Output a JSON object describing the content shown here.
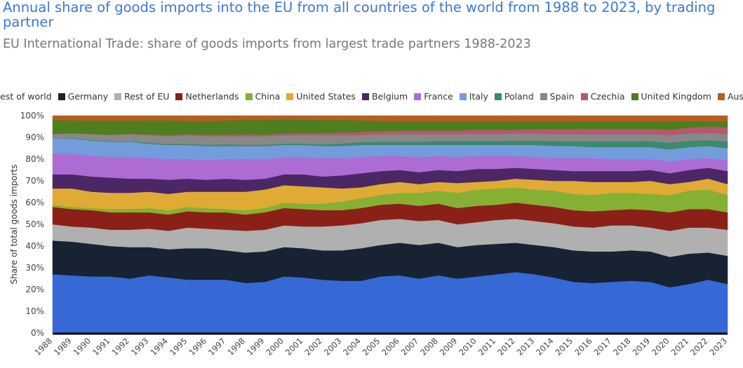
{
  "title": "Annual share of goods imports into the EU from all countries of the world from 1988 to 2023, by trading partner",
  "subtitle": "EU International Trade: share of goods imports from largest trade partners 1988-2023",
  "chart_data": {
    "type": "area",
    "stacked": true,
    "ylabel": "Share of total goods imports",
    "ylim": [
      0,
      100
    ],
    "yticks": [
      "0%",
      "10%",
      "20%",
      "30%",
      "40%",
      "50%",
      "60%",
      "70%",
      "80%",
      "90%",
      "100%"
    ],
    "grid": false,
    "legend_position": "top",
    "categories": [
      "1988",
      "1989",
      "1990",
      "1991",
      "1992",
      "1993",
      "1994",
      "1995",
      "1996",
      "1997",
      "1998",
      "1999",
      "2000",
      "2001",
      "2002",
      "2003",
      "2004",
      "2005",
      "2006",
      "2007",
      "2008",
      "2009",
      "2010",
      "2011",
      "2012",
      "2013",
      "2014",
      "2015",
      "2016",
      "2017",
      "2018",
      "2019",
      "2020",
      "2021",
      "2022",
      "2023"
    ],
    "series": [
      {
        "name": "Rest of world",
        "color": "#3669d6",
        "values": [
          27,
          26.5,
          26,
          26,
          25,
          26.5,
          25.5,
          24.5,
          24.5,
          24.5,
          23,
          23.5,
          26,
          25.5,
          24.5,
          24,
          24,
          26,
          26.5,
          25,
          26.5,
          25,
          26,
          27,
          28,
          27,
          25.5,
          23.5,
          23,
          23.5,
          24,
          23.5,
          21,
          22.5,
          24.5,
          22.5
        ]
      },
      {
        "name": "Germany",
        "color": "#172233",
        "values": [
          15.5,
          15.5,
          15,
          14,
          14.5,
          13,
          13,
          14.5,
          14.5,
          13.5,
          14,
          14,
          13.5,
          13.5,
          13.5,
          14,
          15,
          14.5,
          15,
          15.5,
          15,
          14.5,
          14.5,
          14,
          13.5,
          13.5,
          14,
          14.5,
          14.5,
          14,
          14,
          14,
          14,
          14,
          12.5,
          13
        ]
      },
      {
        "name": "Rest of EU",
        "color": "#b0b0b0",
        "values": [
          7.5,
          7,
          7.5,
          7.5,
          8,
          8.5,
          8.5,
          9.5,
          9,
          9.5,
          10,
          10,
          10,
          10,
          11,
          11.5,
          11.5,
          11.5,
          11,
          11,
          10.5,
          10.5,
          10.5,
          11,
          11,
          11,
          11,
          11,
          11,
          12,
          11.5,
          11,
          12,
          12,
          11.5,
          12
        ]
      },
      {
        "name": "Netherlands",
        "color": "#8b2018",
        "values": [
          8,
          8,
          8,
          8,
          8,
          7.5,
          7.5,
          7.5,
          7.5,
          8,
          7.5,
          8,
          8,
          8,
          7.5,
          7,
          7,
          7,
          7,
          7,
          7.5,
          7.5,
          7.5,
          7,
          7.5,
          7.5,
          7.5,
          7.5,
          7.5,
          7,
          7.5,
          8,
          8.5,
          8.5,
          8.5,
          8
        ]
      },
      {
        "name": "China",
        "color": "#86b033",
        "values": [
          1,
          1,
          1,
          1.5,
          1.5,
          2,
          2,
          2,
          2,
          1.5,
          2,
          2,
          2.5,
          2.5,
          3,
          4,
          4.5,
          4.5,
          5,
          6,
          6,
          7,
          7.5,
          7.5,
          7,
          7,
          7.5,
          7.5,
          7.5,
          8,
          7.5,
          7.5,
          8,
          8.5,
          9,
          8
        ]
      },
      {
        "name": "United States",
        "color": "#e0ab35",
        "values": [
          7.5,
          8.5,
          7.5,
          7.5,
          7.5,
          7.5,
          7.5,
          7,
          7.5,
          8,
          8.5,
          8.5,
          8,
          8,
          7.5,
          6,
          5,
          5,
          5,
          4,
          4,
          4.5,
          3.5,
          3.5,
          4,
          4.5,
          4.5,
          6,
          6,
          5,
          5,
          6,
          5,
          4,
          5,
          5
        ]
      },
      {
        "name": "Belgium",
        "color": "#4b2766",
        "values": [
          6.5,
          6.5,
          7,
          7,
          6.5,
          6,
          6.5,
          6,
          5.5,
          6,
          5.5,
          5,
          5,
          5.5,
          5,
          6,
          6.5,
          6,
          5.5,
          5.5,
          5.5,
          5.5,
          6,
          5.5,
          5,
          5,
          5,
          4.5,
          5,
          5,
          5,
          5,
          5,
          5.5,
          5,
          6
        ]
      },
      {
        "name": "France",
        "color": "#ad6cd4",
        "values": [
          9.5,
          9.5,
          9.5,
          9.5,
          10,
          9.5,
          9.5,
          9,
          9,
          9,
          9.5,
          9,
          8,
          8,
          8.5,
          8,
          7.5,
          7,
          6.5,
          7,
          6.5,
          6.5,
          6,
          6,
          5.5,
          5.5,
          5.5,
          6,
          6,
          5.5,
          5.5,
          5,
          5.5,
          5,
          4.5,
          5
        ]
      },
      {
        "name": "Italy",
        "color": "#739cdc",
        "values": [
          7,
          7,
          7,
          7,
          7,
          6.5,
          6.5,
          6.5,
          6.5,
          6,
          6,
          6,
          5.5,
          5.5,
          5.5,
          5.5,
          5.5,
          5,
          5,
          5.5,
          5,
          5.5,
          5,
          5,
          5,
          5.5,
          5.5,
          5.5,
          5,
          5.5,
          5.5,
          5.5,
          5.5,
          5.5,
          5.5,
          5.5
        ]
      },
      {
        "name": "Poland",
        "color": "#3b8a6e",
        "values": [
          0.1,
          0.2,
          0.3,
          0.3,
          0.3,
          0.5,
          0.5,
          0.5,
          0.6,
          0.8,
          0.6,
          0.6,
          0.7,
          0.7,
          0.8,
          1.2,
          1.3,
          1.5,
          1.5,
          1.5,
          1.8,
          1.8,
          1.8,
          1.8,
          2,
          2,
          2.3,
          2.2,
          2.7,
          2.7,
          2.7,
          2.8,
          3,
          3,
          2.7,
          3.2
        ]
      },
      {
        "name": "Spain",
        "color": "#888888",
        "values": [
          1.9,
          2.1,
          2.7,
          2.7,
          3.2,
          3.5,
          3.5,
          4,
          3.9,
          3.7,
          3.9,
          3.9,
          3.8,
          3.8,
          4.2,
          3.8,
          3.2,
          3.5,
          3.5,
          3.5,
          3.2,
          3.2,
          3.2,
          3.2,
          3.3,
          3.3,
          3.2,
          3.3,
          3.3,
          3.3,
          3.3,
          3.2,
          3.5,
          3.3,
          3.3,
          3.3
        ]
      },
      {
        "name": "Czechia",
        "color": "#b55870",
        "values": [
          0.1,
          0.1,
          0.1,
          0.2,
          0.2,
          0.4,
          0.5,
          0.5,
          0.7,
          0.8,
          0.9,
          0.7,
          0.8,
          1,
          1,
          1.2,
          1.5,
          1.5,
          1.5,
          1.7,
          1.7,
          1.7,
          2,
          2,
          1.7,
          2,
          2.3,
          2.3,
          2.5,
          2.5,
          2.5,
          2.5,
          2.5,
          2.7,
          3,
          3
        ]
      },
      {
        "name": "United Kingdom",
        "color": "#4e7e1f",
        "values": [
          6.4,
          5.9,
          6.1,
          6.5,
          6,
          6.4,
          6.8,
          6,
          6.3,
          6.5,
          6.6,
          6.8,
          6.5,
          6.2,
          6,
          5.8,
          5.3,
          4.5,
          4.5,
          4.3,
          4.3,
          4.3,
          4,
          4,
          4,
          3.7,
          3.7,
          3.7,
          3.5,
          3.5,
          3.5,
          3.5,
          4,
          3,
          2.5,
          2.8
        ]
      },
      {
        "name": "Austria",
        "color": "#b55e22",
        "values": [
          2,
          2.2,
          2.3,
          2.3,
          2.3,
          2.2,
          2.2,
          2.5,
          2.5,
          2.2,
          2,
          2,
          1.7,
          1.8,
          2,
          2,
          2.2,
          2.5,
          2.5,
          2.5,
          2.5,
          2.5,
          2.5,
          2.5,
          2.5,
          2.5,
          2.5,
          2.5,
          2.5,
          2.5,
          2.5,
          2.5,
          2.5,
          2.5,
          2.5,
          2.7
        ]
      }
    ]
  }
}
